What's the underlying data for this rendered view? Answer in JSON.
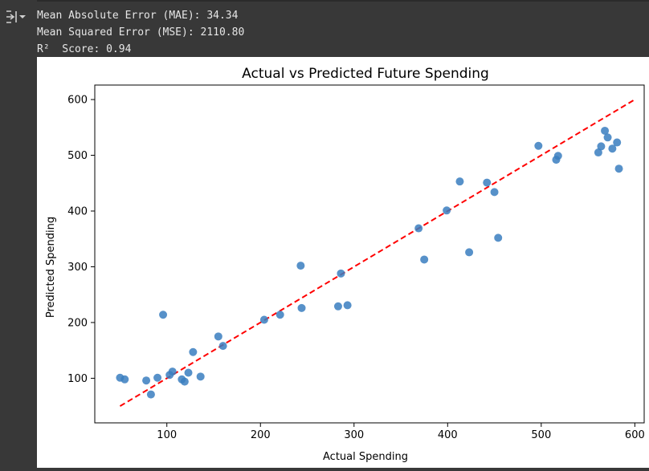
{
  "output": {
    "lines": [
      "Mean Absolute Error (MAE): 34.34",
      "Mean Squared Error (MSE): 2110.80",
      "R²  Score: 0.94"
    ]
  },
  "colors": {
    "points": "#3a7ebf",
    "reference_line": "#ff0000",
    "background": "#383838"
  },
  "icons": {
    "output_toggle": "output-collapse-icon"
  },
  "chart_data": {
    "type": "scatter",
    "title": "Actual vs Predicted Future Spending",
    "xlabel": "Actual Spending",
    "ylabel": "Predicted Spending",
    "xlim": [
      23,
      610
    ],
    "ylim": [
      20,
      626
    ],
    "xticks": [
      100,
      200,
      300,
      400,
      500,
      600
    ],
    "yticks": [
      100,
      200,
      300,
      400,
      500,
      600
    ],
    "grid": false,
    "reference_line": {
      "style": "dashed",
      "x": [
        50,
        600
      ],
      "y": [
        50,
        600
      ]
    },
    "points": [
      {
        "x": 50,
        "y": 101
      },
      {
        "x": 55,
        "y": 98
      },
      {
        "x": 78,
        "y": 96
      },
      {
        "x": 83,
        "y": 71
      },
      {
        "x": 90,
        "y": 101
      },
      {
        "x": 96,
        "y": 214
      },
      {
        "x": 103,
        "y": 106
      },
      {
        "x": 106,
        "y": 112
      },
      {
        "x": 116,
        "y": 98
      },
      {
        "x": 119,
        "y": 94
      },
      {
        "x": 123,
        "y": 110
      },
      {
        "x": 128,
        "y": 147
      },
      {
        "x": 136,
        "y": 103
      },
      {
        "x": 155,
        "y": 175
      },
      {
        "x": 160,
        "y": 158
      },
      {
        "x": 204,
        "y": 205
      },
      {
        "x": 221,
        "y": 214
      },
      {
        "x": 243,
        "y": 302
      },
      {
        "x": 244,
        "y": 226
      },
      {
        "x": 283,
        "y": 229
      },
      {
        "x": 286,
        "y": 288
      },
      {
        "x": 293,
        "y": 231
      },
      {
        "x": 369,
        "y": 369
      },
      {
        "x": 375,
        "y": 313
      },
      {
        "x": 399,
        "y": 401
      },
      {
        "x": 413,
        "y": 453
      },
      {
        "x": 423,
        "y": 326
      },
      {
        "x": 442,
        "y": 451
      },
      {
        "x": 450,
        "y": 434
      },
      {
        "x": 454,
        "y": 352
      },
      {
        "x": 497,
        "y": 517
      },
      {
        "x": 516,
        "y": 492
      },
      {
        "x": 518,
        "y": 499
      },
      {
        "x": 561,
        "y": 505
      },
      {
        "x": 564,
        "y": 516
      },
      {
        "x": 568,
        "y": 544
      },
      {
        "x": 571,
        "y": 532
      },
      {
        "x": 576,
        "y": 512
      },
      {
        "x": 581,
        "y": 523
      },
      {
        "x": 583,
        "y": 476
      }
    ]
  }
}
